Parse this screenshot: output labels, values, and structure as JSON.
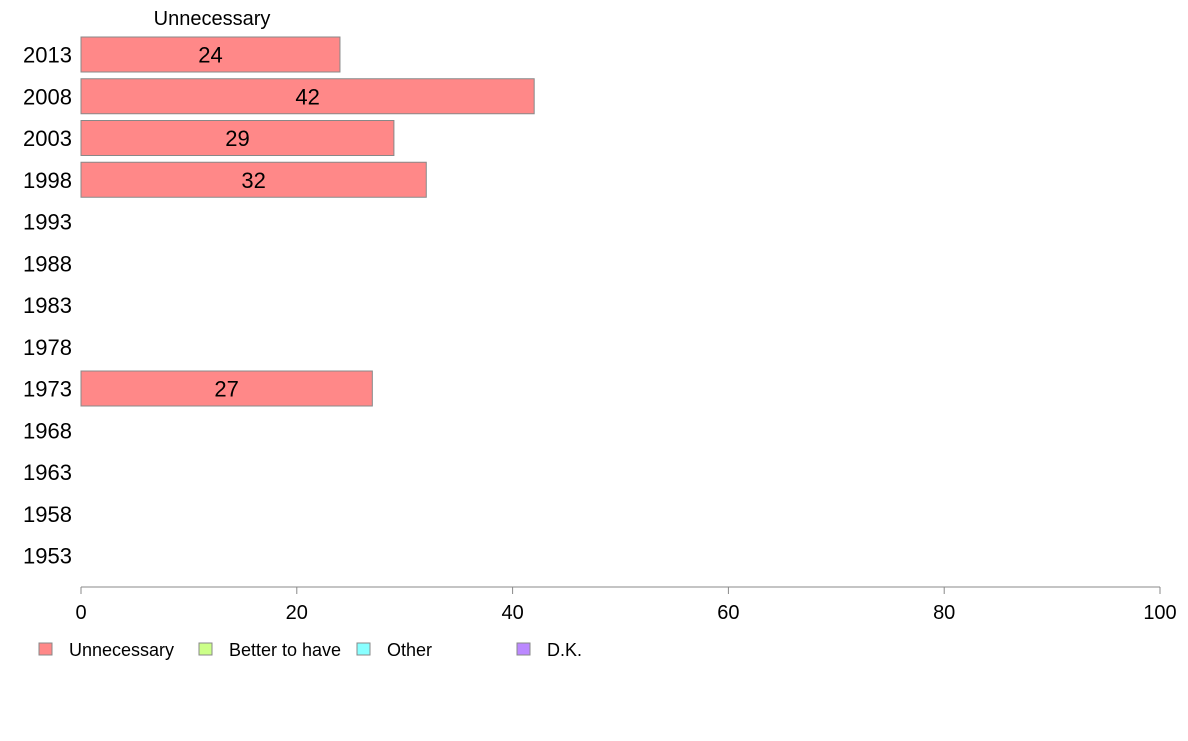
{
  "chart_data": {
    "type": "bar",
    "orientation": "horizontal",
    "stacked": true,
    "categories": [
      "2013",
      "2008",
      "2003",
      "1998",
      "1993",
      "1988",
      "1983",
      "1978",
      "1973",
      "1968",
      "1963",
      "1958",
      "1953"
    ],
    "series": [
      {
        "name": "Unnecessary",
        "values": [
          24,
          42,
          29,
          32,
          null,
          null,
          null,
          null,
          27,
          null,
          null,
          null,
          null
        ]
      },
      {
        "name": "Better to have",
        "values": [
          null,
          null,
          null,
          null,
          null,
          null,
          null,
          null,
          null,
          null,
          null,
          null,
          null
        ]
      },
      {
        "name": "Other",
        "values": [
          null,
          null,
          null,
          null,
          null,
          null,
          null,
          null,
          null,
          null,
          null,
          null,
          null
        ]
      },
      {
        "name": "D.K.",
        "values": [
          null,
          null,
          null,
          null,
          null,
          null,
          null,
          null,
          null,
          null,
          null,
          null,
          null
        ]
      }
    ],
    "column_header": "Unnecessary",
    "xlim": [
      0,
      100
    ],
    "xticks": [
      "0",
      "20",
      "40",
      "60",
      "80",
      "100"
    ],
    "grid": false,
    "legend_position": "bottom-left",
    "colors": {
      "Unnecessary": "#ff8888",
      "Better to have": "#ccff88",
      "Other": "#88ffff",
      "D.K.": "#bb88ff",
      "bar_stroke": "#888888",
      "axis": "#888888"
    }
  }
}
